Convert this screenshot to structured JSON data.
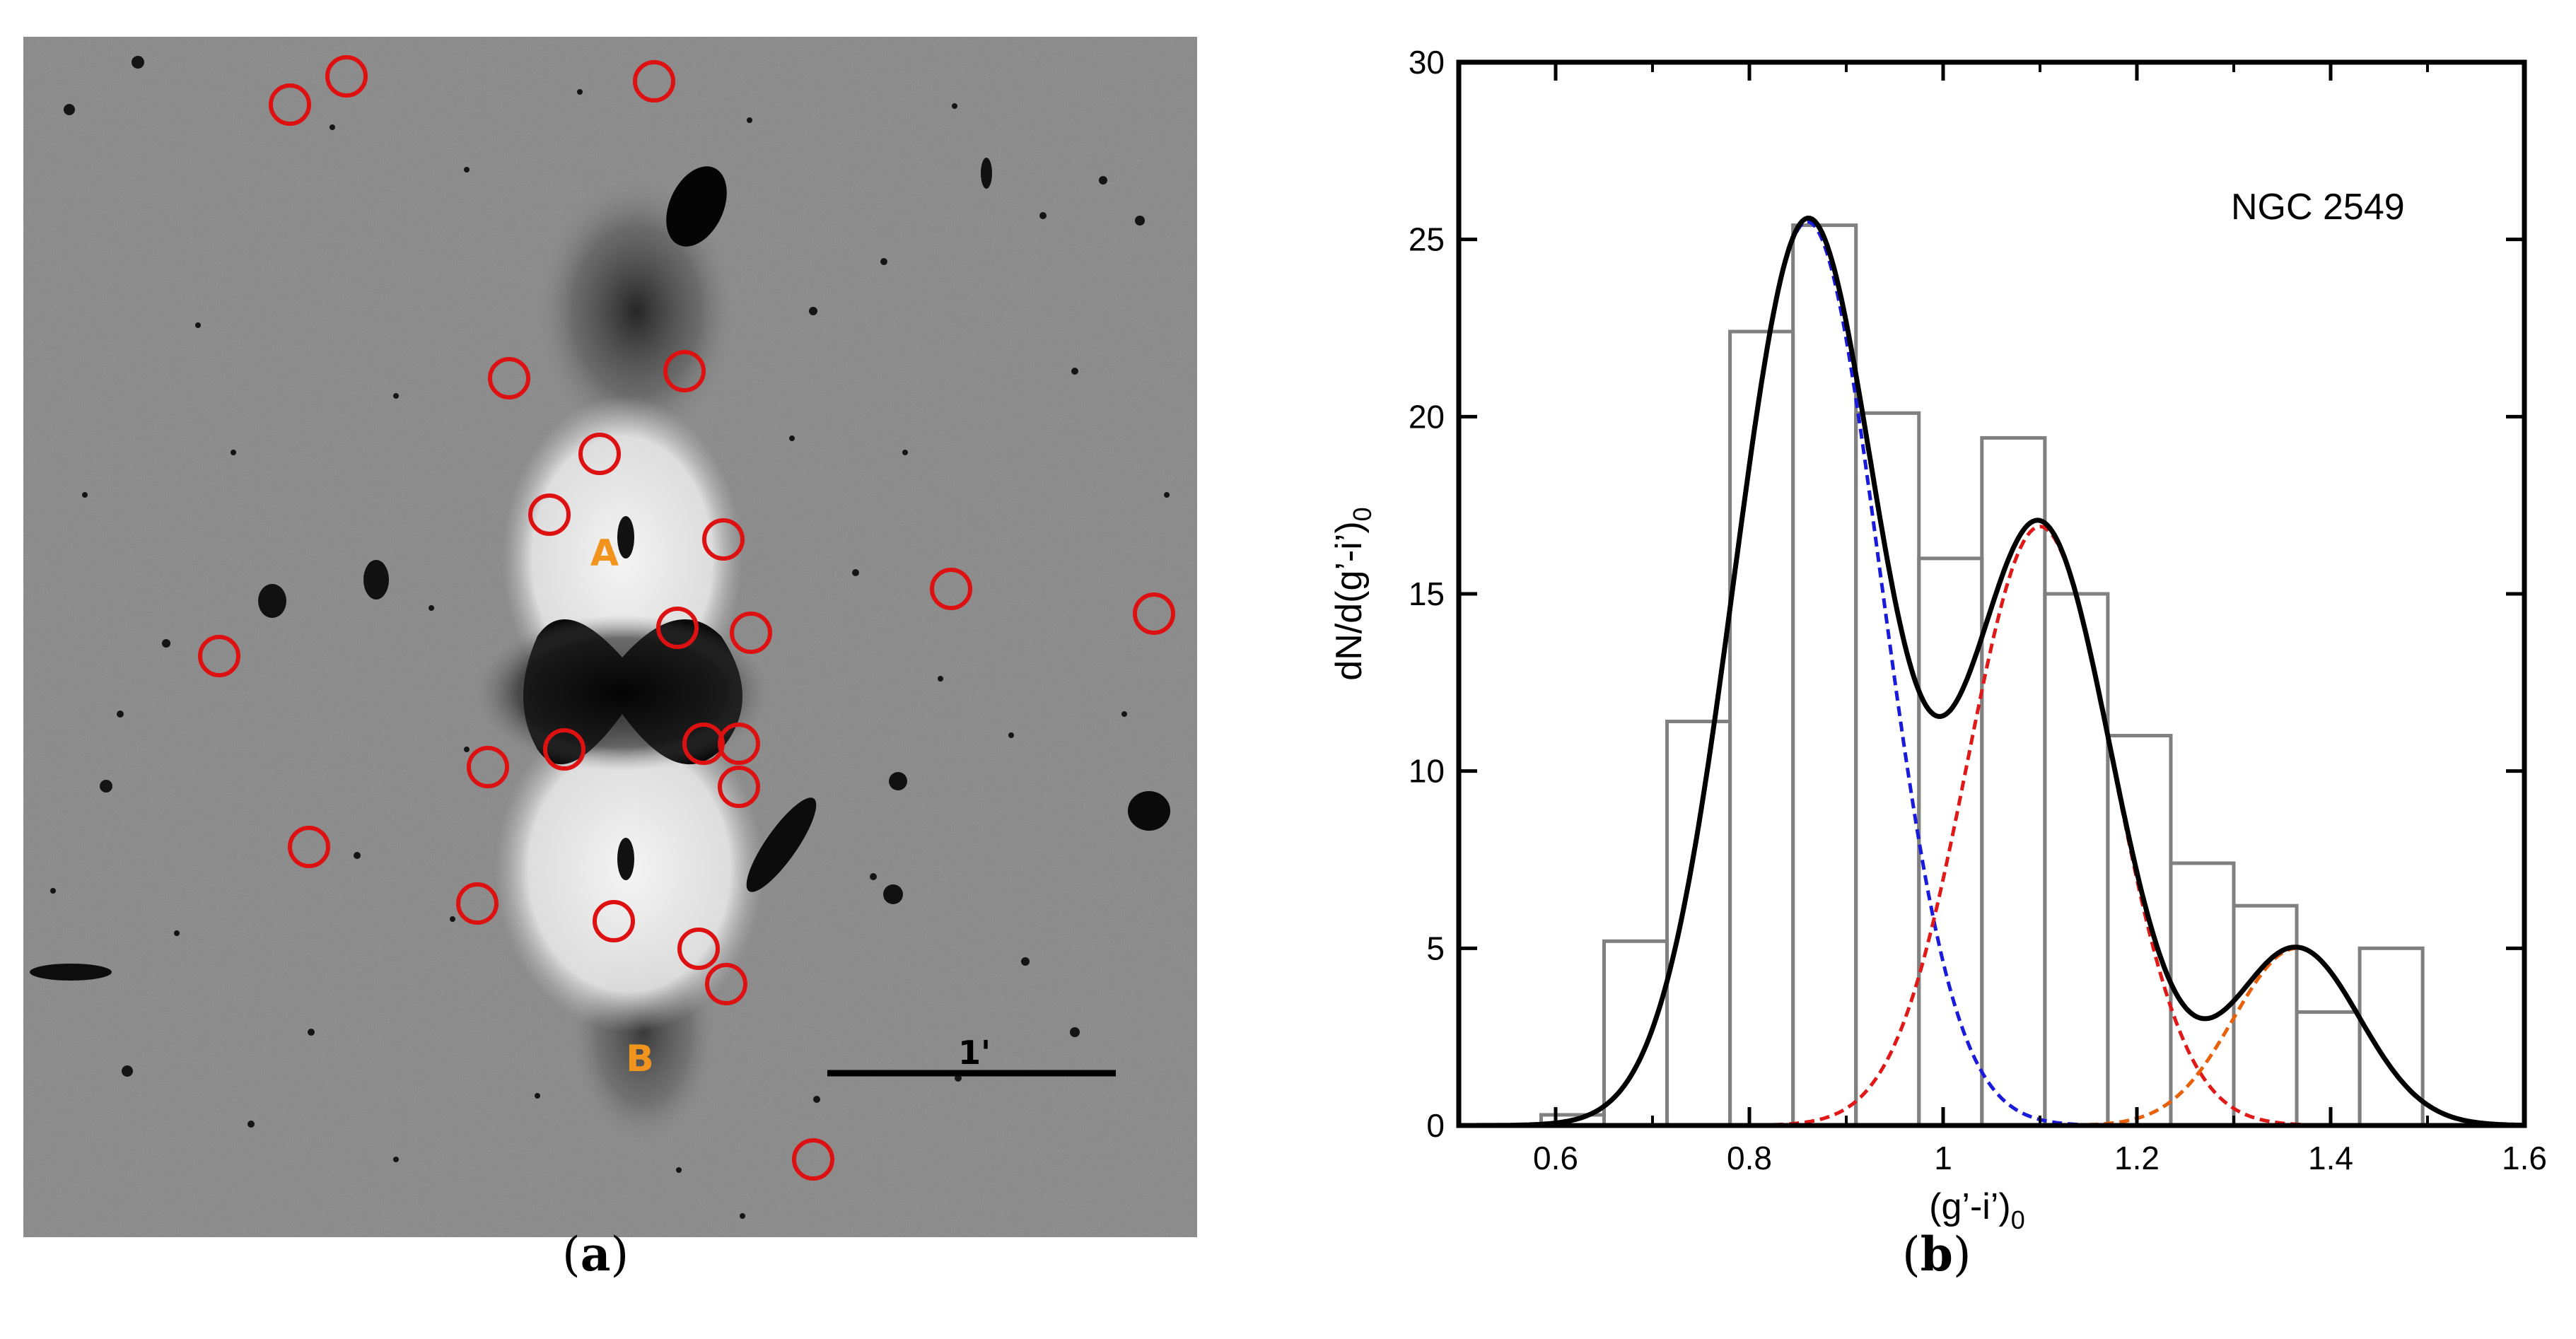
{
  "panel_a": {
    "caption_letter": "a",
    "labels": {
      "A": "A",
      "B": "B"
    },
    "scale_bar_label": "1'",
    "label_color": "#f0941e",
    "circle_color": "#dd1111",
    "background_color": "#9a9a9a"
  },
  "panel_b": {
    "caption_letter": "b"
  },
  "chart_data": {
    "type": "histogram",
    "title": "",
    "annotation": "NGC 2549",
    "xlabel": "(g’-i’)",
    "xlabel_sub": "0",
    "ylabel": "dN/d(g’-i’)",
    "ylabel_sub": "0",
    "xlim": [
      0.5,
      1.6
    ],
    "ylim": [
      0,
      30
    ],
    "xticks": [
      0.6,
      0.8,
      1.0,
      1.2,
      1.4,
      1.6
    ],
    "xtick_labels": [
      "0.6",
      "0.8",
      "1",
      "1.2",
      "1.4",
      "1.6"
    ],
    "yticks": [
      0,
      5,
      10,
      15,
      20,
      25,
      30
    ],
    "ytick_labels": [
      "0",
      "5",
      "10",
      "15",
      "20",
      "25",
      "30"
    ],
    "histogram": {
      "name": "histogram",
      "color": "#808080",
      "bin_edges": [
        0.585,
        0.65,
        0.715,
        0.78,
        0.845,
        0.91,
        0.975,
        1.04,
        1.105,
        1.17,
        1.235,
        1.3,
        1.365,
        1.43,
        1.495
      ],
      "counts": [
        0.3,
        5.2,
        11.4,
        22.4,
        25.4,
        20.1,
        16.0,
        19.4,
        15.0,
        11.0,
        7.4,
        6.2,
        3.2,
        5.0
      ]
    },
    "gaussians": [
      {
        "name": "blue component",
        "color": "#1a1adc",
        "amp": 25.5,
        "mu": 0.86,
        "sigma": 0.0757
      },
      {
        "name": "red component",
        "color": "#e01818",
        "amp": 16.9,
        "mu": 1.1,
        "sigma": 0.075
      },
      {
        "name": "orange component",
        "color": "#e8600a",
        "amp": 5.0,
        "mu": 1.365,
        "sigma": 0.065
      }
    ],
    "total_fit": {
      "name": "total fit",
      "color": "#000000"
    }
  }
}
